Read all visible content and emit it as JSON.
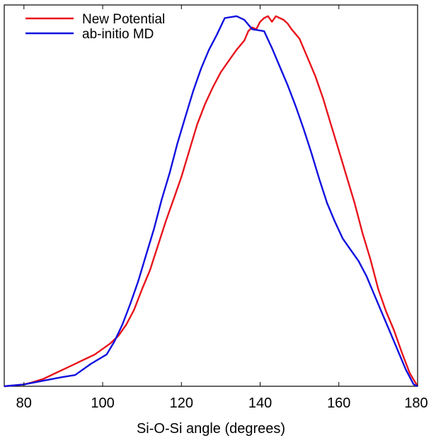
{
  "chart_data": {
    "type": "line",
    "xlabel": "Si-O-Si angle (degrees)",
    "ylabel": "",
    "title": "",
    "xlim": [
      75,
      180
    ],
    "ylim": [
      0,
      1.02
    ],
    "xticks": [
      80,
      100,
      120,
      140,
      160,
      180
    ],
    "grid": false,
    "legend_position": "top-left",
    "series": [
      {
        "name": "New Potential",
        "color": "#e8141c",
        "x": [
          75,
          80,
          82,
          85,
          88,
          90,
          93,
          95,
          98,
          100,
          102,
          104,
          106,
          108,
          110,
          112,
          114,
          116,
          118,
          120,
          122,
          124,
          126,
          128,
          130,
          132,
          134,
          136,
          137,
          138,
          139,
          140,
          141,
          142,
          143,
          144,
          145,
          146,
          147,
          148,
          150,
          152,
          154,
          156,
          158,
          160,
          162,
          164,
          166,
          168,
          170,
          172,
          174,
          176,
          178,
          180
        ],
        "y": [
          0.0,
          0.005,
          0.01,
          0.02,
          0.035,
          0.045,
          0.06,
          0.07,
          0.085,
          0.1,
          0.115,
          0.135,
          0.165,
          0.205,
          0.26,
          0.31,
          0.375,
          0.44,
          0.5,
          0.56,
          0.63,
          0.7,
          0.755,
          0.8,
          0.84,
          0.87,
          0.9,
          0.925,
          0.95,
          0.96,
          0.955,
          0.975,
          0.985,
          0.99,
          0.975,
          0.99,
          0.985,
          0.98,
          0.97,
          0.955,
          0.93,
          0.88,
          0.83,
          0.77,
          0.7,
          0.63,
          0.56,
          0.49,
          0.41,
          0.34,
          0.26,
          0.2,
          0.15,
          0.09,
          0.035,
          0.0
        ]
      },
      {
        "name": "ab-initio MD",
        "color": "#1010e0",
        "x": [
          75,
          80,
          85,
          90,
          93,
          97,
          101,
          103,
          105,
          107,
          109,
          111,
          113,
          115,
          117,
          119,
          121,
          123,
          125,
          127,
          129,
          131,
          134,
          136,
          138,
          141,
          143,
          145,
          147,
          149,
          151,
          153,
          155,
          157,
          159,
          161,
          163,
          165,
          167,
          169,
          171,
          173,
          175,
          177,
          179,
          180
        ],
        "y": [
          0.0,
          0.005,
          0.015,
          0.025,
          0.03,
          0.06,
          0.085,
          0.12,
          0.165,
          0.22,
          0.28,
          0.35,
          0.42,
          0.5,
          0.57,
          0.65,
          0.72,
          0.79,
          0.85,
          0.9,
          0.94,
          0.985,
          0.99,
          0.98,
          0.955,
          0.95,
          0.905,
          0.855,
          0.805,
          0.75,
          0.69,
          0.625,
          0.555,
          0.49,
          0.44,
          0.395,
          0.365,
          0.335,
          0.295,
          0.245,
          0.195,
          0.145,
          0.095,
          0.045,
          0.005,
          0.0
        ]
      }
    ]
  }
}
